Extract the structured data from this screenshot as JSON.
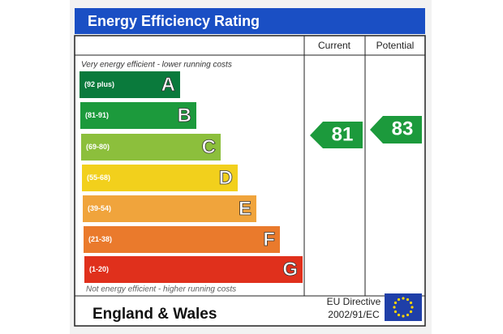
{
  "header": {
    "title": "Energy Efficiency Rating"
  },
  "columns": {
    "current": "Current",
    "potential": "Potential"
  },
  "top_note": "Very energy efficient - lower running costs",
  "bands": [
    {
      "range": "(92 plus)",
      "letter": "A"
    },
    {
      "range": "(81-91)",
      "letter": "B"
    },
    {
      "range": "(69-80)",
      "letter": "C"
    },
    {
      "range": "(55-68)",
      "letter": "D"
    },
    {
      "range": "(39-54)",
      "letter": "E"
    },
    {
      "range": "(21-38)",
      "letter": "F"
    },
    {
      "range": "(1-20)",
      "letter": "G"
    }
  ],
  "ratings": {
    "current": 81,
    "potential": 83
  },
  "bottom_note": "Not energy efficient - higher running costs",
  "footer": {
    "region": "England & Wales",
    "directive": [
      "EU Directive",
      "2002/91/EC"
    ]
  }
}
